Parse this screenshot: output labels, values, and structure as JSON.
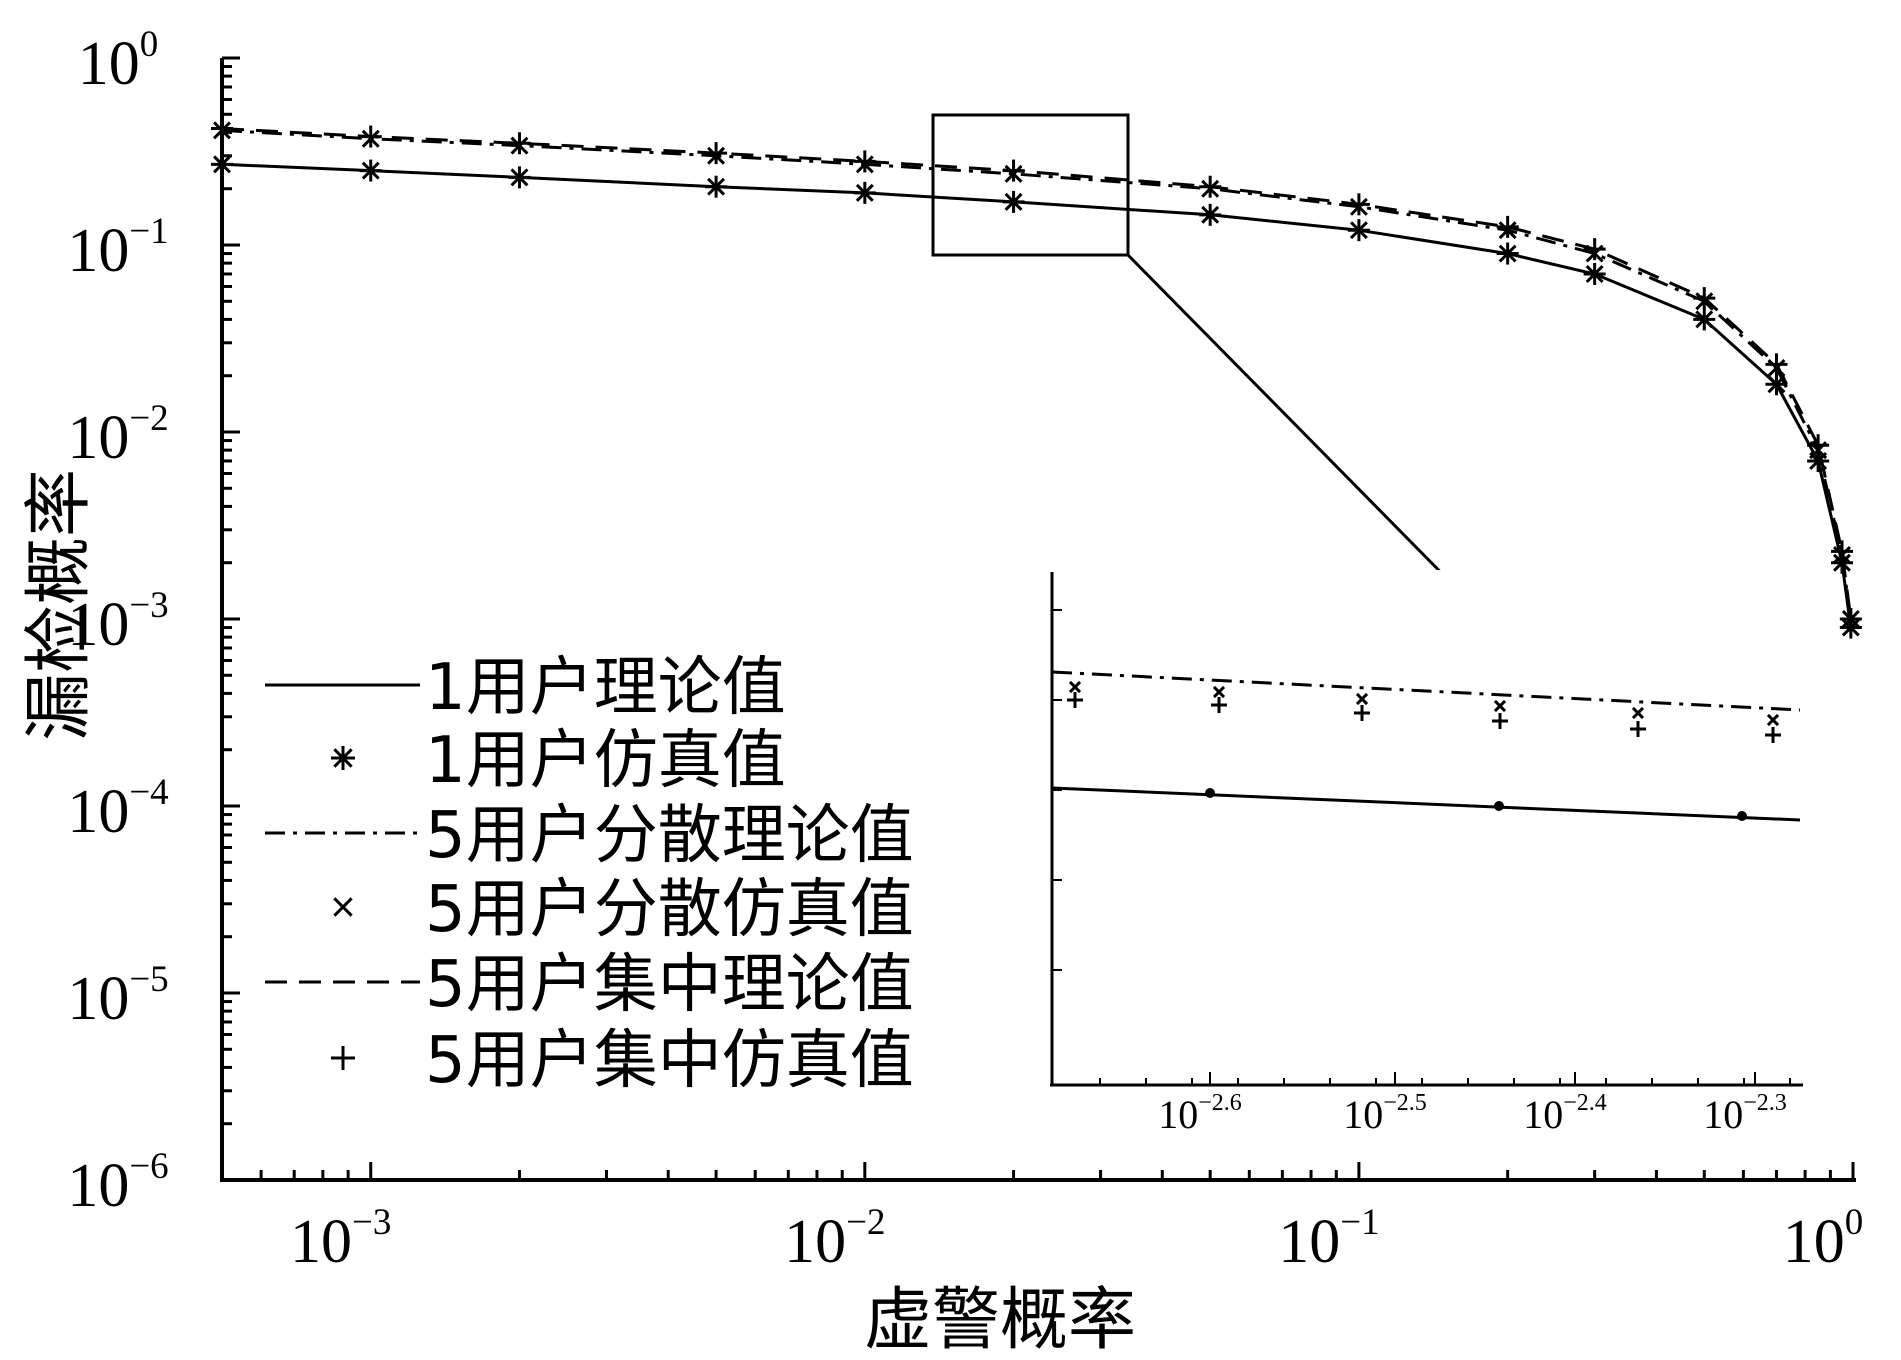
{
  "chart_data": {
    "type": "line",
    "xlabel": "虚警概率",
    "ylabel": "漏检概率",
    "x_scale": "log",
    "y_scale": "log",
    "xlim": [
      0.0005,
      1
    ],
    "ylim": [
      1e-06,
      1
    ],
    "x_ticks": [
      {
        "base": "10",
        "exp": "−3"
      },
      {
        "base": "10",
        "exp": "−2"
      },
      {
        "base": "10",
        "exp": "−1"
      },
      {
        "base": "10",
        "exp": "0"
      }
    ],
    "y_ticks": [
      {
        "base": "10",
        "exp": "0"
      },
      {
        "base": "10",
        "exp": "−1"
      },
      {
        "base": "10",
        "exp": "−2"
      },
      {
        "base": "10",
        "exp": "−3"
      },
      {
        "base": "10",
        "exp": "−4"
      },
      {
        "base": "10",
        "exp": "−5"
      },
      {
        "base": "10",
        "exp": "−6"
      }
    ],
    "series": [
      {
        "name": "1用户理论值",
        "style": "solid",
        "marker": "none",
        "x": [
          0.0005,
          0.001,
          0.002,
          0.005,
          0.01,
          0.02,
          0.05,
          0.1,
          0.2,
          0.3,
          0.5,
          0.7,
          0.85,
          0.95,
          0.99
        ],
        "y": [
          0.27,
          0.25,
          0.23,
          0.205,
          0.19,
          0.17,
          0.145,
          0.12,
          0.09,
          0.07,
          0.04,
          0.018,
          0.007,
          0.002,
          0.0009
        ]
      },
      {
        "name": "1用户仿真值",
        "style": "none",
        "marker": "star",
        "x": [
          0.0005,
          0.001,
          0.002,
          0.005,
          0.01,
          0.02,
          0.05,
          0.1,
          0.2,
          0.3,
          0.5,
          0.7,
          0.85,
          0.95,
          0.99
        ],
        "y": [
          0.27,
          0.25,
          0.23,
          0.205,
          0.19,
          0.17,
          0.145,
          0.12,
          0.09,
          0.07,
          0.04,
          0.018,
          0.007,
          0.002,
          0.0009
        ]
      },
      {
        "name": "5用户分散理论值",
        "style": "dashdot",
        "marker": "none",
        "x": [
          0.0005,
          0.001,
          0.002,
          0.005,
          0.01,
          0.02,
          0.05,
          0.1,
          0.2,
          0.3,
          0.5,
          0.7,
          0.85,
          0.95,
          0.99
        ],
        "y": [
          0.41,
          0.37,
          0.34,
          0.3,
          0.27,
          0.24,
          0.2,
          0.16,
          0.12,
          0.09,
          0.05,
          0.022,
          0.008,
          0.0022,
          0.001
        ]
      },
      {
        "name": "5用户分散仿真值",
        "style": "none",
        "marker": "x",
        "x": [
          0.0005,
          0.001,
          0.002,
          0.005,
          0.01,
          0.02,
          0.05,
          0.1,
          0.2,
          0.3,
          0.5,
          0.7,
          0.85,
          0.95,
          0.99
        ],
        "y": [
          0.41,
          0.37,
          0.34,
          0.3,
          0.27,
          0.24,
          0.2,
          0.16,
          0.12,
          0.09,
          0.05,
          0.022,
          0.008,
          0.0022,
          0.001
        ]
      },
      {
        "name": "5用户集中理论值",
        "style": "dashed",
        "marker": "none",
        "x": [
          0.0005,
          0.001,
          0.002,
          0.005,
          0.01,
          0.02,
          0.05,
          0.1,
          0.2,
          0.3,
          0.5,
          0.7,
          0.85,
          0.95,
          0.99
        ],
        "y": [
          0.42,
          0.38,
          0.35,
          0.31,
          0.28,
          0.25,
          0.205,
          0.165,
          0.125,
          0.095,
          0.052,
          0.023,
          0.0085,
          0.0023,
          0.001
        ]
      },
      {
        "name": "5用户集中仿真值",
        "style": "none",
        "marker": "plus",
        "x": [
          0.0005,
          0.001,
          0.002,
          0.005,
          0.01,
          0.02,
          0.05,
          0.1,
          0.2,
          0.3,
          0.5,
          0.7,
          0.85,
          0.95,
          0.99
        ],
        "y": [
          0.42,
          0.38,
          0.35,
          0.31,
          0.28,
          0.25,
          0.205,
          0.165,
          0.125,
          0.095,
          0.052,
          0.023,
          0.0085,
          0.0023,
          0.001
        ]
      }
    ],
    "legend_position": "lower-left",
    "inset": {
      "x_ticks": [
        {
          "base": "10",
          "exp": "−2.6"
        },
        {
          "base": "10",
          "exp": "−2.5"
        },
        {
          "base": "10",
          "exp": "−2.4"
        },
        {
          "base": "10",
          "exp": "−2.3"
        }
      ]
    }
  }
}
